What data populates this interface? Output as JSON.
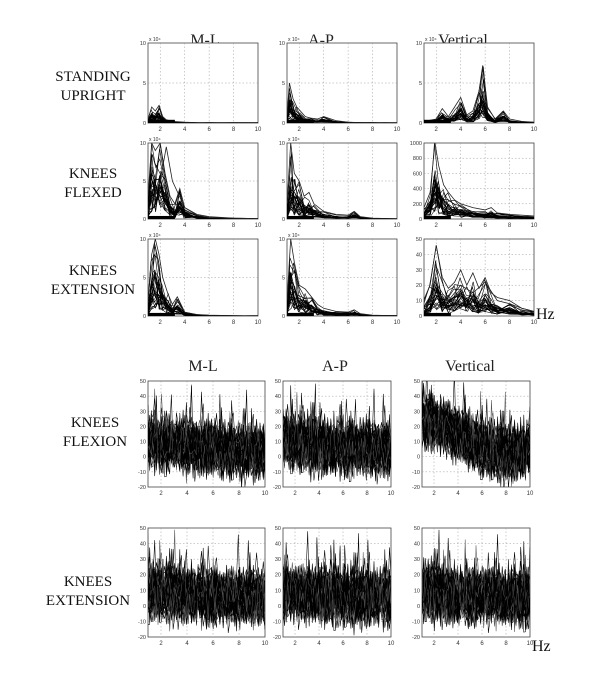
{
  "top_block": {
    "columns": [
      "M-L",
      "A-P",
      "Vertical"
    ],
    "rows": [
      {
        "label": [
          "STANDING",
          "UPRIGHT"
        ]
      },
      {
        "label": [
          "KNEES",
          "FLEXED"
        ]
      },
      {
        "label": [
          "KNEES",
          "EXTENSION"
        ]
      }
    ],
    "unit": "Hz"
  },
  "bottom_block": {
    "columns": [
      "M-L",
      "A-P",
      "Vertical"
    ],
    "rows": [
      {
        "label": [
          "KNEES",
          "FLEXION"
        ]
      },
      {
        "label": [
          "KNEES",
          "EXTENSION"
        ]
      }
    ],
    "unit": "Hz"
  },
  "chart_data": [
    {
      "type": "line",
      "group": "top",
      "row": "STANDING UPRIGHT",
      "column": "M-L",
      "xlim": [
        1,
        10
      ],
      "ylim": [
        0,
        10
      ],
      "y_scale_label": "x 10⁴",
      "xticks": [
        2,
        4,
        6,
        8,
        10
      ],
      "yticks": [
        0,
        5,
        10
      ],
      "grid": true,
      "series": [
        {
          "x": [
            1,
            1.3,
            1.6,
            1.9,
            2.2,
            2.5,
            3,
            4,
            5,
            6,
            7,
            8,
            9,
            10
          ],
          "y": [
            0.5,
            2.0,
            1.5,
            2.2,
            0.8,
            0.4,
            0.2,
            0.1,
            0.05,
            0.05,
            0.05,
            0.05,
            0.05,
            0.05
          ]
        }
      ]
    },
    {
      "type": "line",
      "group": "top",
      "row": "STANDING UPRIGHT",
      "column": "A-P",
      "xlim": [
        1,
        10
      ],
      "ylim": [
        0,
        10
      ],
      "y_scale_label": "x 10⁴",
      "xticks": [
        2,
        4,
        6,
        8,
        10
      ],
      "yticks": [
        0,
        5,
        10
      ],
      "grid": true,
      "series": [
        {
          "x": [
            1,
            1.2,
            1.5,
            1.8,
            2.1,
            2.5,
            3,
            3.5,
            4,
            5,
            6,
            7,
            8,
            9,
            10
          ],
          "y": [
            1.0,
            5.0,
            3.0,
            2.0,
            1.5,
            0.8,
            0.6,
            0.5,
            0.8,
            0.3,
            0.1,
            0.05,
            0.05,
            0.05,
            0.05
          ]
        }
      ]
    },
    {
      "type": "line",
      "group": "top",
      "row": "STANDING UPRIGHT",
      "column": "Vertical",
      "xlim": [
        1,
        10
      ],
      "ylim": [
        0,
        10
      ],
      "y_scale_label": "x 10⁴",
      "xticks": [
        2,
        4,
        6,
        8,
        10
      ],
      "yticks": [
        0,
        5,
        10
      ],
      "grid": true,
      "series": [
        {
          "x": [
            1,
            2,
            2.5,
            3,
            3.5,
            4,
            4.5,
            5,
            5.5,
            5.8,
            6.2,
            6.8,
            7.5,
            8,
            9,
            10
          ],
          "y": [
            0.2,
            0.5,
            1.8,
            0.8,
            2.0,
            3.2,
            1.0,
            1.5,
            4.0,
            7.2,
            2.0,
            0.5,
            1.5,
            0.5,
            0.2,
            0.1
          ]
        }
      ]
    },
    {
      "type": "line",
      "group": "top",
      "row": "KNEES FLEXED",
      "column": "M-L",
      "xlim": [
        1,
        10
      ],
      "ylim": [
        0,
        10
      ],
      "y_scale_label": "x 10⁴",
      "xticks": [
        2,
        4,
        6,
        8,
        10
      ],
      "yticks": [
        0,
        5,
        10
      ],
      "grid": true,
      "series": [
        {
          "x": [
            1,
            1.3,
            1.6,
            2.0,
            2.4,
            2.8,
            3.2,
            3.6,
            4,
            5,
            6,
            8,
            10
          ],
          "y": [
            3.0,
            10,
            9.0,
            10,
            6.0,
            3.0,
            2.0,
            4.0,
            1.5,
            0.5,
            0.2,
            0.1,
            0.05
          ]
        },
        {
          "x": [
            1,
            2,
            2.5,
            3,
            4,
            5,
            6,
            8,
            10
          ],
          "y": [
            1.0,
            5.0,
            9.5,
            5.0,
            1.5,
            0.6,
            0.3,
            0.1,
            0.05
          ]
        }
      ]
    },
    {
      "type": "line",
      "group": "top",
      "row": "KNEES FLEXED",
      "column": "A-P",
      "xlim": [
        1,
        10
      ],
      "ylim": [
        0,
        10
      ],
      "y_scale_label": "x 10⁴",
      "xticks": [
        2,
        4,
        6,
        8,
        10
      ],
      "yticks": [
        0,
        5,
        10
      ],
      "grid": true,
      "series": [
        {
          "x": [
            1,
            1.3,
            1.6,
            2.0,
            2.4,
            2.8,
            3.2,
            4,
            5,
            6,
            6.5,
            7,
            8,
            10
          ],
          "y": [
            2.0,
            10,
            6.0,
            5.0,
            3.0,
            3.5,
            2.0,
            1.0,
            0.6,
            0.5,
            1.0,
            0.3,
            0.1,
            0.05
          ]
        }
      ]
    },
    {
      "type": "line",
      "group": "top",
      "row": "KNEES FLEXED",
      "column": "Vertical",
      "xlim": [
        1,
        10
      ],
      "ylim": [
        0,
        1000
      ],
      "y_scale_label": "",
      "xticks": [
        2,
        4,
        6,
        8,
        10
      ],
      "yticks": [
        0,
        200,
        400,
        600,
        800,
        1000
      ],
      "grid": true,
      "series": [
        {
          "x": [
            1,
            1.5,
            1.9,
            2.2,
            2.6,
            3,
            3.5,
            4,
            5,
            6,
            6.5,
            7,
            8,
            9,
            10
          ],
          "y": [
            150,
            350,
            1000,
            700,
            450,
            350,
            250,
            200,
            150,
            120,
            150,
            80,
            60,
            50,
            40
          ]
        }
      ]
    },
    {
      "type": "line",
      "group": "top",
      "row": "KNEES EXTENSION",
      "column": "M-L",
      "xlim": [
        1,
        10
      ],
      "ylim": [
        0,
        10
      ],
      "y_scale_label": "x 10⁴",
      "xticks": [
        2,
        4,
        6,
        8,
        10
      ],
      "yticks": [
        0,
        5,
        10
      ],
      "grid": true,
      "series": [
        {
          "x": [
            1,
            1.3,
            1.6,
            1.9,
            2.2,
            2.6,
            3,
            3.4,
            4,
            5,
            6,
            8,
            10
          ],
          "y": [
            2.0,
            8.0,
            10,
            8.0,
            5.0,
            3.0,
            1.5,
            2.5,
            0.5,
            0.2,
            0.1,
            0.05,
            0.05
          ]
        }
      ]
    },
    {
      "type": "line",
      "group": "top",
      "row": "KNEES EXTENSION",
      "column": "A-P",
      "xlim": [
        1,
        10
      ],
      "ylim": [
        0,
        10
      ],
      "y_scale_label": "x 10⁴",
      "xticks": [
        2,
        4,
        6,
        8,
        10
      ],
      "yticks": [
        0,
        5,
        10
      ],
      "grid": true,
      "series": [
        {
          "x": [
            1,
            1.3,
            1.6,
            2.0,
            2.5,
            3,
            3.5,
            4,
            5,
            6,
            6.5,
            7,
            8,
            10
          ],
          "y": [
            2.0,
            10,
            7.0,
            4.0,
            3.5,
            2.5,
            1.5,
            1.0,
            0.6,
            0.5,
            0.8,
            0.3,
            0.1,
            0.05
          ]
        }
      ]
    },
    {
      "type": "line",
      "group": "top",
      "row": "KNEES EXTENSION",
      "column": "Vertical",
      "xlim": [
        1,
        10
      ],
      "ylim": [
        0,
        50
      ],
      "y_scale_label": "",
      "xticks": [
        2,
        4,
        6,
        8,
        10
      ],
      "yticks": [
        0,
        10,
        20,
        30,
        40,
        50
      ],
      "grid": true,
      "series": [
        {
          "x": [
            1,
            1.5,
            2,
            2.5,
            3,
            3.5,
            4,
            4.5,
            5,
            5.5,
            6,
            6.5,
            7,
            8,
            9,
            10
          ],
          "y": [
            10,
            20,
            46,
            25,
            18,
            22,
            30,
            20,
            28,
            18,
            25,
            15,
            12,
            10,
            5,
            3
          ]
        },
        {
          "x": [
            1,
            2,
            3,
            4,
            5,
            6,
            7,
            8,
            9,
            10
          ],
          "y": [
            5,
            15,
            10,
            20,
            15,
            22,
            10,
            8,
            5,
            3
          ]
        }
      ]
    },
    {
      "type": "line",
      "group": "bottom",
      "row": "KNEES FLEXION",
      "column": "M-L",
      "xlim": [
        1,
        10
      ],
      "ylim": [
        -20,
        50
      ],
      "xticks": [
        2,
        4,
        6,
        8,
        10
      ],
      "yticks": [
        -20,
        -10,
        0,
        10,
        20,
        30,
        40,
        50
      ],
      "grid": true,
      "band_trend": [
        10,
        8,
        6,
        4,
        3
      ]
    },
    {
      "type": "line",
      "group": "bottom",
      "row": "KNEES FLEXION",
      "column": "A-P",
      "xlim": [
        1,
        10
      ],
      "ylim": [
        -20,
        50
      ],
      "xticks": [
        2,
        4,
        6,
        8,
        10
      ],
      "yticks": [
        -20,
        -10,
        0,
        10,
        20,
        30,
        40,
        50
      ],
      "grid": true,
      "band_trend": [
        12,
        8,
        6,
        5,
        5
      ]
    },
    {
      "type": "line",
      "group": "bottom",
      "row": "KNEES FLEXION",
      "column": "Vertical",
      "xlim": [
        1,
        10
      ],
      "ylim": [
        -20,
        50
      ],
      "xticks": [
        2,
        4,
        6,
        8,
        10
      ],
      "yticks": [
        -20,
        -10,
        0,
        10,
        20,
        30,
        40,
        50
      ],
      "grid": true,
      "band_trend": [
        25,
        18,
        8,
        2,
        4
      ]
    },
    {
      "type": "line",
      "group": "bottom",
      "row": "KNEES EXTENSION",
      "column": "M-L",
      "xlim": [
        1,
        10
      ],
      "ylim": [
        -20,
        50
      ],
      "xticks": [
        2,
        4,
        6,
        8,
        10
      ],
      "yticks": [
        -20,
        -10,
        0,
        10,
        20,
        30,
        40,
        50
      ],
      "grid": true,
      "band_trend": [
        10,
        8,
        6,
        6,
        5
      ]
    },
    {
      "type": "line",
      "group": "bottom",
      "row": "KNEES EXTENSION",
      "column": "A-P",
      "xlim": [
        1,
        10
      ],
      "ylim": [
        -20,
        50
      ],
      "xticks": [
        2,
        4,
        6,
        8,
        10
      ],
      "yticks": [
        -20,
        -10,
        0,
        10,
        20,
        30,
        40,
        50
      ],
      "grid": true,
      "band_trend": [
        8,
        8,
        6,
        6,
        5
      ]
    },
    {
      "type": "line",
      "group": "bottom",
      "row": "KNEES EXTENSION",
      "column": "Vertical",
      "xlim": [
        1,
        10
      ],
      "ylim": [
        -20,
        50
      ],
      "xticks": [
        2,
        4,
        6,
        8,
        10
      ],
      "yticks": [
        -20,
        -10,
        0,
        10,
        20,
        30,
        40,
        50
      ],
      "grid": true,
      "band_trend": [
        10,
        7,
        6,
        6,
        5
      ]
    }
  ]
}
